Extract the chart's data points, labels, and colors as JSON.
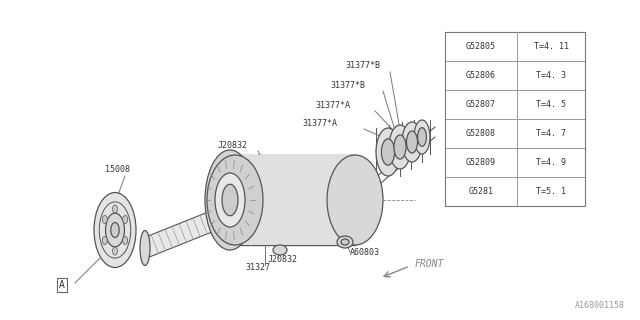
{
  "background_color": "#ffffff",
  "table_data": [
    [
      "G52805",
      "T=4. 11"
    ],
    [
      "G52806",
      "T=4. 3"
    ],
    [
      "G52807",
      "T=4. 5"
    ],
    [
      "G52808",
      "T=4. 7"
    ],
    [
      "G52809",
      "T=4. 9"
    ],
    [
      "G5281",
      "T=5. 1"
    ]
  ],
  "watermark": "A168001158",
  "line_color": "#555555",
  "table_line_color": "#999999"
}
